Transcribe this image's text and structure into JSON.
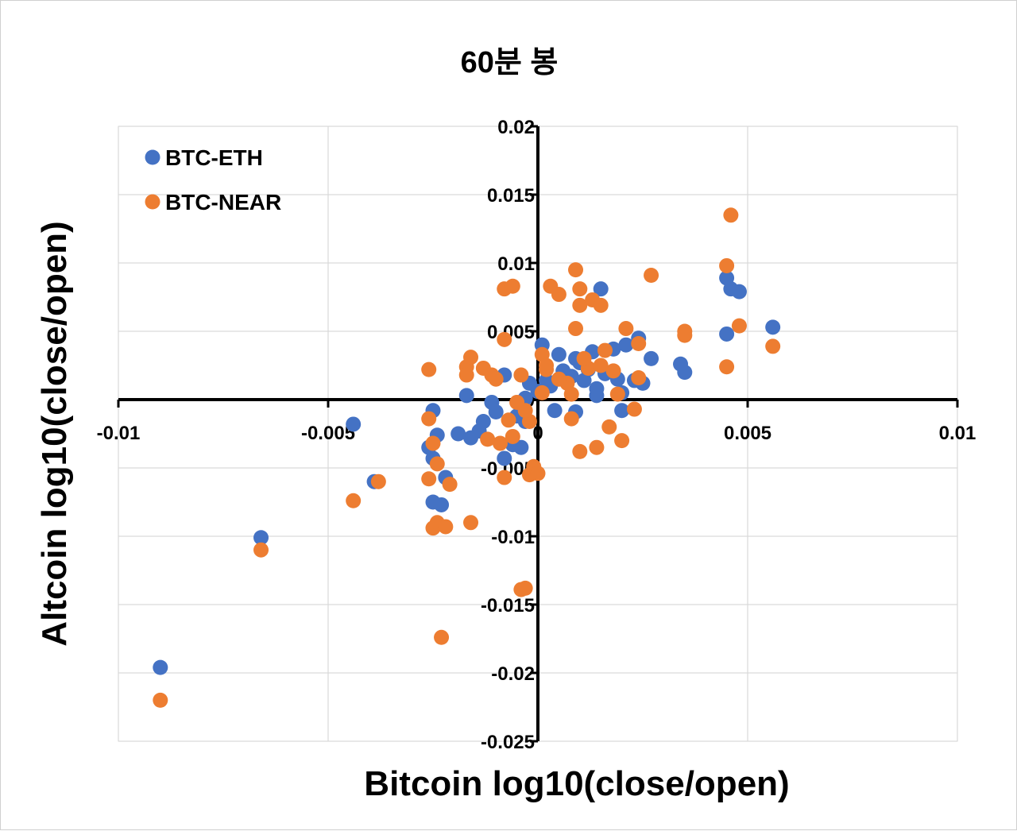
{
  "chart_data": {
    "type": "scatter",
    "title": "60분 봉",
    "xlabel": "Bitcoin log10(close/open)",
    "ylabel": "Altcoin log10(close/open)",
    "xlim": [
      -0.01,
      0.01
    ],
    "ylim": [
      -0.025,
      0.02
    ],
    "x_ticks": [
      -0.01,
      -0.005,
      0,
      0.005,
      0.01
    ],
    "x_tick_labels": [
      "-0.01",
      "-0.005",
      "0",
      "0.005",
      "0.01"
    ],
    "y_ticks": [
      0.02,
      0.015,
      0.01,
      0.005,
      0,
      -0.005,
      -0.01,
      -0.015,
      -0.02,
      -0.025
    ],
    "y_tick_labels": [
      "0.02",
      "0.015",
      "0.01",
      "0.005",
      "0",
      "-0.005",
      "-0.01",
      "-0.015",
      "-0.02",
      "-0.025"
    ],
    "grid": true,
    "legend_position": "top-left",
    "series": [
      {
        "name": "BTC-ETH",
        "color": "#4472C4",
        "points": [
          [
            -0.009,
            -0.0196
          ],
          [
            -0.0066,
            -0.0101
          ],
          [
            -0.0044,
            -0.0018
          ],
          [
            -0.0039,
            -0.006
          ],
          [
            -0.0026,
            -0.0035
          ],
          [
            -0.0025,
            -0.0043
          ],
          [
            -0.0025,
            -0.0075
          ],
          [
            -0.0023,
            -0.0077
          ],
          [
            -0.0022,
            -0.0057
          ],
          [
            -0.0025,
            -0.0008
          ],
          [
            -0.0024,
            -0.0026
          ],
          [
            -0.0019,
            -0.0025
          ],
          [
            -0.0017,
            0.0003
          ],
          [
            -0.0016,
            -0.0028
          ],
          [
            -0.0014,
            -0.0023
          ],
          [
            -0.0013,
            -0.0016
          ],
          [
            -0.0011,
            -0.0002
          ],
          [
            -0.001,
            -0.0009
          ],
          [
            -0.0008,
            -0.0043
          ],
          [
            -0.0006,
            -0.0033
          ],
          [
            -0.0004,
            -0.0035
          ],
          [
            -0.0005,
            -0.0012
          ],
          [
            -0.0003,
            -0.0016
          ],
          [
            -0.0002,
            0.0012
          ],
          [
            0.0,
            0.0006
          ],
          [
            0.0002,
            0.0014
          ],
          [
            0.0003,
            0.001
          ],
          [
            0.0004,
            -0.0008
          ],
          [
            0.0006,
            0.0021
          ],
          [
            0.0008,
            0.0017
          ],
          [
            0.0009,
            0.003
          ],
          [
            0.0009,
            -0.0009
          ],
          [
            0.0011,
            0.0014
          ],
          [
            0.0012,
            0.0022
          ],
          [
            0.0013,
            0.0035
          ],
          [
            0.0014,
            0.0003
          ],
          [
            0.0015,
            0.0081
          ],
          [
            0.0016,
            0.0019
          ],
          [
            0.0018,
            0.0037
          ],
          [
            0.0019,
            0.0015
          ],
          [
            0.002,
            0.0005
          ],
          [
            0.0021,
            0.004
          ],
          [
            0.0023,
            0.0014
          ],
          [
            0.0024,
            0.0045
          ],
          [
            0.0025,
            0.0012
          ],
          [
            0.0027,
            0.003
          ],
          [
            0.002,
            -0.0008
          ],
          [
            0.0034,
            0.0026
          ],
          [
            0.0035,
            0.002
          ],
          [
            0.0045,
            0.0089
          ],
          [
            0.0045,
            0.0048
          ],
          [
            0.0046,
            0.0081
          ],
          [
            0.0048,
            0.0079
          ],
          [
            0.0056,
            0.0053
          ],
          [
            0.0001,
            0.004
          ],
          [
            0.0005,
            0.0033
          ],
          [
            0.001,
            0.0027
          ],
          [
            0.0014,
            0.0008
          ],
          [
            -0.0008,
            0.0018
          ],
          [
            -0.0003,
            0.0001
          ]
        ]
      },
      {
        "name": "BTC-NEAR",
        "color": "#ED7D31",
        "points": [
          [
            -0.009,
            -0.022
          ],
          [
            -0.0066,
            -0.011
          ],
          [
            -0.0044,
            -0.0074
          ],
          [
            -0.0038,
            -0.006
          ],
          [
            -0.0026,
            -0.0058
          ],
          [
            -0.0025,
            -0.0094
          ],
          [
            -0.0024,
            -0.009
          ],
          [
            -0.0022,
            -0.0093
          ],
          [
            -0.0023,
            -0.0174
          ],
          [
            -0.0021,
            -0.0062
          ],
          [
            -0.0024,
            -0.0047
          ],
          [
            -0.0025,
            -0.0032
          ],
          [
            -0.0026,
            -0.0014
          ],
          [
            -0.0026,
            0.0022
          ],
          [
            -0.0017,
            0.0024
          ],
          [
            -0.0016,
            0.0031
          ],
          [
            -0.0017,
            0.0018
          ],
          [
            -0.0013,
            0.0023
          ],
          [
            -0.0011,
            0.0018
          ],
          [
            -0.001,
            0.0015
          ],
          [
            -0.0008,
            0.0081
          ],
          [
            -0.0006,
            0.0083
          ],
          [
            -0.0008,
            0.0044
          ],
          [
            -0.0004,
            0.0018
          ],
          [
            -0.0005,
            -0.0002
          ],
          [
            -0.0007,
            -0.0015
          ],
          [
            -0.0009,
            -0.0032
          ],
          [
            -0.0012,
            -0.0029
          ],
          [
            -0.0016,
            -0.009
          ],
          [
            -0.0008,
            -0.0057
          ],
          [
            -0.0006,
            -0.0027
          ],
          [
            -0.0004,
            -0.0139
          ],
          [
            -0.0003,
            -0.0138
          ],
          [
            -0.0002,
            -0.0055
          ],
          [
            -0.0001,
            -0.0049
          ],
          [
            0.0,
            -0.0054
          ],
          [
            0.0001,
            0.0033
          ],
          [
            0.0002,
            0.0022
          ],
          [
            0.0003,
            0.0083
          ],
          [
            0.0005,
            0.0077
          ],
          [
            0.0007,
            0.0012
          ],
          [
            0.0008,
            0.0004
          ],
          [
            0.0009,
            0.0095
          ],
          [
            0.0009,
            0.0052
          ],
          [
            0.001,
            0.0081
          ],
          [
            0.001,
            0.0069
          ],
          [
            0.001,
            -0.0038
          ],
          [
            0.0013,
            0.0073
          ],
          [
            0.0015,
            0.0069
          ],
          [
            0.0014,
            -0.0035
          ],
          [
            0.0016,
            0.0036
          ],
          [
            0.0017,
            -0.002
          ],
          [
            0.0018,
            0.0021
          ],
          [
            0.0019,
            0.0004
          ],
          [
            0.002,
            -0.003
          ],
          [
            0.0021,
            0.0052
          ],
          [
            0.0024,
            0.0016
          ],
          [
            0.0024,
            0.0041
          ],
          [
            0.0027,
            0.0091
          ],
          [
            0.0035,
            0.005
          ],
          [
            0.0035,
            0.0047
          ],
          [
            0.0045,
            0.0098
          ],
          [
            0.0046,
            0.0135
          ],
          [
            0.0045,
            0.0024
          ],
          [
            0.0048,
            0.0054
          ],
          [
            0.0056,
            0.0039
          ],
          [
            0.0023,
            -0.0007
          ],
          [
            0.0012,
            0.0023
          ],
          [
            0.0008,
            -0.0014
          ],
          [
            0.0005,
            0.0015
          ],
          [
            0.0001,
            0.0005
          ],
          [
            -0.0002,
            -0.0016
          ],
          [
            -0.0003,
            -0.0008
          ],
          [
            0.0002,
            0.0025
          ],
          [
            0.0011,
            0.003
          ],
          [
            0.0015,
            0.0025
          ]
        ]
      }
    ]
  }
}
